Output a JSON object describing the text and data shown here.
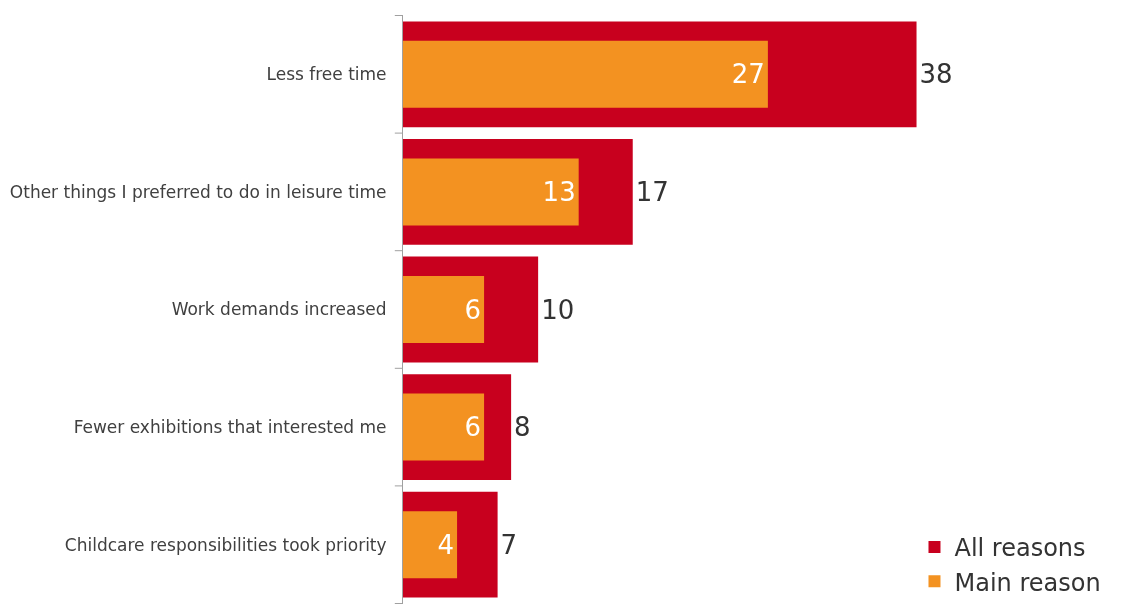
{
  "chart_data": {
    "type": "bar",
    "orientation": "horizontal",
    "categories": [
      "Less free time",
      "Other things I preferred to do in leisure time",
      "Work demands increased",
      "Fewer exhibitions that interested me",
      "Childcare responsibilities took priority"
    ],
    "series": [
      {
        "name": "All reasons",
        "color": "#c8001e",
        "values": [
          38,
          17,
          10,
          8,
          7
        ]
      },
      {
        "name": "Main reason",
        "color": "#f39221",
        "values": [
          27,
          13,
          6,
          6,
          4
        ]
      }
    ],
    "data_labels": true,
    "legend": "bottom right"
  }
}
